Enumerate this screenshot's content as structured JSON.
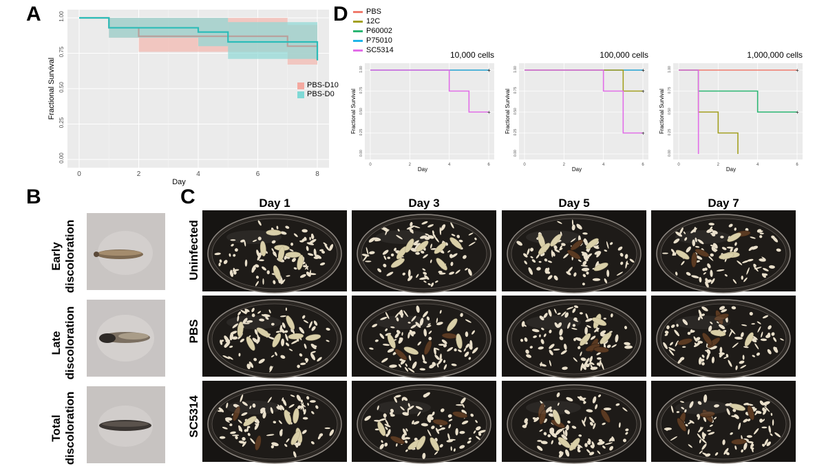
{
  "panels": {
    "A": {
      "letter": "A",
      "ylabel": "Fractional Survival",
      "xlabel": "Day",
      "yticks": [
        "0.00",
        "0.25",
        "0.50",
        "0.75",
        "1.00"
      ],
      "xticks": [
        "0",
        "2",
        "4",
        "6",
        "8"
      ],
      "legend": [
        {
          "name": "PBS-D10",
          "color": "#f4a9a0"
        },
        {
          "name": "PBS-D0",
          "color": "#7fd9d6"
        }
      ]
    },
    "B": {
      "letter": "B",
      "labels": [
        {
          "line1": "Early",
          "line2": "discoloration"
        },
        {
          "line1": "Late",
          "line2": "discoloration"
        },
        {
          "line1": "Total",
          "line2": "discoloration"
        }
      ]
    },
    "C": {
      "letter": "C",
      "columns": [
        "Day 1",
        "Day 3",
        "Day 5",
        "Day 7"
      ],
      "rows": [
        "Uninfected",
        "PBS",
        "SC5314"
      ]
    },
    "D": {
      "letter": "D",
      "legend": [
        {
          "name": "PBS",
          "color": "#f07b6c"
        },
        {
          "name": "12C",
          "color": "#a3a020"
        },
        {
          "name": "P60002",
          "color": "#2bb673"
        },
        {
          "name": "P75010",
          "color": "#1fb5e8"
        },
        {
          "name": "SC5314",
          "color": "#e26de8"
        }
      ],
      "subplots": [
        {
          "title": "10,000 cells"
        },
        {
          "title": "100,000 cells"
        },
        {
          "title": "1,000,000 cells"
        }
      ],
      "ylabel": "Fractional Survival",
      "xlabel": "Day",
      "yticks": [
        "0.00",
        "0.25",
        "0.50",
        "0.75",
        "1.00"
      ],
      "xticks": [
        "0",
        "2",
        "4",
        "6"
      ]
    }
  },
  "chart_data": [
    {
      "type": "line",
      "title": "",
      "xlabel": "Day",
      "ylabel": "Fractional Survival",
      "xlim": [
        0,
        8
      ],
      "ylim": [
        0,
        1
      ],
      "series": [
        {
          "name": "PBS-D10",
          "color": "#b9a09c",
          "band": "#f4b6ae",
          "steps": [
            [
              0,
              1.0
            ],
            [
              1,
              0.93
            ],
            [
              2,
              0.87
            ],
            [
              7,
              0.8
            ],
            [
              8,
              0.7
            ]
          ],
          "upper": [
            [
              1,
              1.0
            ],
            [
              2,
              1.0
            ],
            [
              7,
              0.95
            ],
            [
              8,
              0.92
            ]
          ],
          "lower": [
            [
              1,
              0.86
            ],
            [
              2,
              0.76
            ],
            [
              7,
              0.67
            ],
            [
              8,
              0.68
            ]
          ]
        },
        {
          "name": "PBS-D0",
          "color": "#2bbcb8",
          "band": "#8fd9d6",
          "steps": [
            [
              0,
              1.0
            ],
            [
              1,
              0.93
            ],
            [
              4,
              0.9
            ],
            [
              5,
              0.83
            ],
            [
              8,
              0.7
            ]
          ],
          "upper": [
            [
              1,
              1.0
            ],
            [
              4,
              1.0
            ],
            [
              5,
              0.97
            ],
            [
              8,
              0.96
            ]
          ],
          "lower": [
            [
              1,
              0.86
            ],
            [
              4,
              0.8
            ],
            [
              5,
              0.71
            ],
            [
              8,
              0.7
            ]
          ]
        }
      ]
    },
    {
      "type": "line",
      "title": "10,000 cells",
      "xlim": [
        0,
        6
      ],
      "ylim": [
        0,
        1
      ],
      "series": [
        {
          "name": "PBS",
          "steps": [
            [
              0,
              1.0
            ],
            [
              6,
              1.0
            ]
          ]
        },
        {
          "name": "P75010",
          "steps": [
            [
              0,
              1.0
            ],
            [
              6,
              1.0
            ]
          ]
        },
        {
          "name": "SC5314",
          "steps": [
            [
              0,
              1.0
            ],
            [
              4,
              0.75
            ],
            [
              5,
              0.5
            ],
            [
              6,
              0.5
            ]
          ]
        }
      ]
    },
    {
      "type": "line",
      "title": "100,000 cells",
      "xlim": [
        0,
        6
      ],
      "ylim": [
        0,
        1
      ],
      "series": [
        {
          "name": "PBS",
          "steps": [
            [
              0,
              1.0
            ],
            [
              6,
              1.0
            ]
          ]
        },
        {
          "name": "P75010",
          "steps": [
            [
              0,
              1.0
            ],
            [
              6,
              1.0
            ]
          ]
        },
        {
          "name": "12C",
          "steps": [
            [
              0,
              1.0
            ],
            [
              5,
              0.75
            ],
            [
              6,
              0.75
            ]
          ]
        },
        {
          "name": "SC5314",
          "steps": [
            [
              0,
              1.0
            ],
            [
              4,
              0.75
            ],
            [
              5,
              0.25
            ],
            [
              6,
              0.25
            ]
          ]
        }
      ]
    },
    {
      "type": "line",
      "title": "1,000,000 cells",
      "xlim": [
        0,
        6
      ],
      "ylim": [
        0,
        1
      ],
      "series": [
        {
          "name": "PBS",
          "steps": [
            [
              0,
              1.0
            ],
            [
              6,
              1.0
            ]
          ]
        },
        {
          "name": "P60002",
          "steps": [
            [
              0,
              1.0
            ],
            [
              1,
              0.75
            ],
            [
              4,
              0.5
            ],
            [
              6,
              0.5
            ]
          ]
        },
        {
          "name": "12C",
          "steps": [
            [
              0,
              1.0
            ],
            [
              1,
              0.5
            ],
            [
              2,
              0.25
            ],
            [
              3,
              0.0
            ]
          ]
        },
        {
          "name": "SC5314",
          "steps": [
            [
              0,
              1.0
            ],
            [
              1,
              0.0
            ]
          ]
        }
      ]
    }
  ]
}
